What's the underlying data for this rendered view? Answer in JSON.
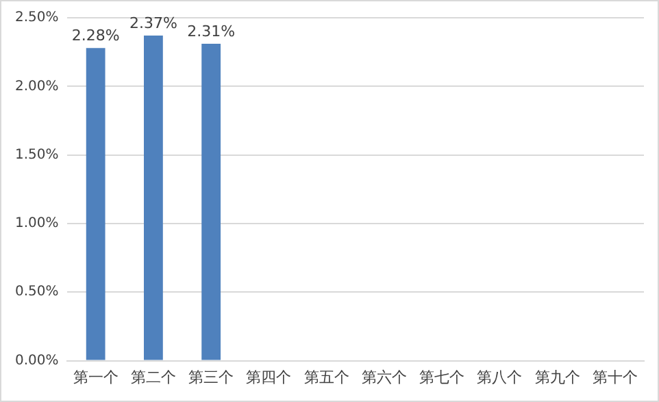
{
  "chart_data": {
    "type": "bar",
    "categories": [
      "第一个",
      "第二个",
      "第三个",
      "第四个",
      "第五个",
      "第六个",
      "第七个",
      "第八个",
      "第九个",
      "第十个"
    ],
    "values": [
      2.28,
      2.37,
      2.31,
      null,
      null,
      null,
      null,
      null,
      null,
      null
    ],
    "value_labels": [
      "2.28%",
      "2.37%",
      "2.31%",
      null,
      null,
      null,
      null,
      null,
      null,
      null
    ],
    "color": "#4f81bd",
    "ylim": [
      0,
      2.5
    ],
    "yticks": [
      {
        "value": 0,
        "label": "0.00%"
      },
      {
        "value": 0.5,
        "label": "0.50%"
      },
      {
        "value": 1,
        "label": "1.00%"
      },
      {
        "value": 1.5,
        "label": "1.50%"
      },
      {
        "value": 2,
        "label": "2.00%"
      },
      {
        "value": 2.5,
        "label": "2.50%"
      }
    ],
    "grid": "y",
    "legend": false
  }
}
